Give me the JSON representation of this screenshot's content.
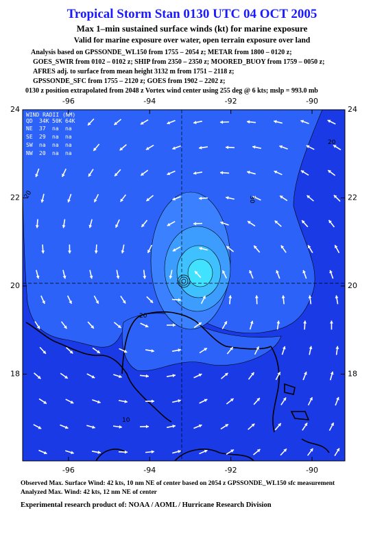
{
  "header": {
    "title": "Tropical Storm Stan 0130 UTC 04 OCT 2005",
    "subtitle": "Max 1–min sustained surface winds (kt) for marine exposure",
    "exposure": "Valid for marine exposure over water, open terrain exposure over land",
    "analysis_lines": [
      "Analysis based on  GPSSONDE_WL150 from 1755 – 2054 z;  METAR from 1800 – 0120 z;",
      "GOES_SWIR from 0102 – 0102 z;  SHIP from 2350 – 2350 z;  MOORED_BUOY from 1759 – 0050 z;",
      "AFRES adj. to surface from mean height 3132 m from 1751 – 2118 z;",
      "GPSSONDE_SFC from 1755 – 2120 z;  GOES from 1902 – 2202 z;"
    ],
    "position": "0130 z position extrapolated from 2048 z Vortex wind center using 255 deg @ 6 kts; mslp = 993.0 mb"
  },
  "map": {
    "lonlim": [
      -97.13,
      -89.19
    ],
    "latlim": [
      16.03,
      24
    ],
    "lon_ticks": [
      -96,
      -94,
      -92,
      -90
    ],
    "lat_ticks": [
      24,
      22,
      20,
      18
    ],
    "wind_radii": {
      "title": "WIND RADII (NM)",
      "header": [
        "QD",
        "34K",
        "50K",
        "64K"
      ],
      "rows": [
        [
          "NE",
          "37",
          "na",
          "na"
        ],
        [
          "SE",
          "29",
          "na",
          "na"
        ],
        [
          "SW",
          "na",
          "na",
          "na"
        ],
        [
          "NW",
          "20",
          "na",
          "na"
        ]
      ]
    },
    "contour_labels": [
      "20",
      "20",
      "30",
      "20",
      "10"
    ]
  },
  "footer": {
    "observed": "Observed Max. Surface Wind: 42 kts, 10 nm NE of center based on 2054 z GPSSONDE_WL150 sfc measurement",
    "analyzed": "Analyzed Max. Wind: 42 kts, 12 nm NE of center",
    "credit": "Experimental research product of:  NOAA / AOML / Hurricane Research Division"
  }
}
